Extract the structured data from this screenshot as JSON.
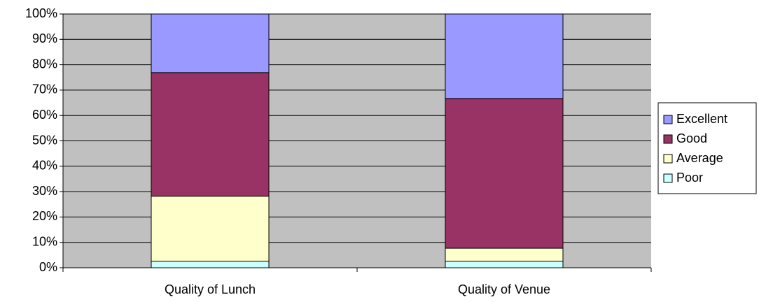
{
  "chart_data": {
    "type": "stacked_bar",
    "categories": [
      "Quality of Lunch",
      "Quality of Venue"
    ],
    "series": [
      {
        "name": "Poor",
        "color": "#ccffff",
        "values": [
          2.6,
          2.6
        ]
      },
      {
        "name": "Average",
        "color": "#ffffcc",
        "values": [
          25.6,
          5.1
        ]
      },
      {
        "name": "Good",
        "color": "#993366",
        "values": [
          48.7,
          59.0
        ]
      },
      {
        "name": "Excellent",
        "color": "#9999ff",
        "values": [
          23.1,
          33.3
        ]
      }
    ],
    "ylim": [
      0,
      100
    ],
    "yticks": [
      {
        "value": 0,
        "label": "0%"
      },
      {
        "value": 10,
        "label": "10%"
      },
      {
        "value": 20,
        "label": "20%"
      },
      {
        "value": 30,
        "label": "30%"
      },
      {
        "value": 40,
        "label": "40%"
      },
      {
        "value": 50,
        "label": "50%"
      },
      {
        "value": 60,
        "label": "60%"
      },
      {
        "value": 70,
        "label": "70%"
      },
      {
        "value": 80,
        "label": "80%"
      },
      {
        "value": 90,
        "label": "90%"
      },
      {
        "value": 100,
        "label": "100%"
      }
    ],
    "grid": true,
    "plot_background": "#c0c0c0",
    "legend": "right"
  }
}
